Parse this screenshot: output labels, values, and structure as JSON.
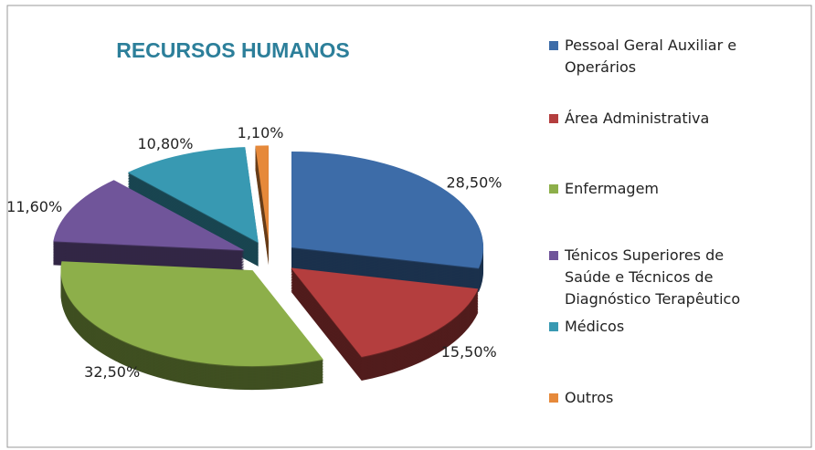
{
  "chart_data": {
    "type": "pie",
    "title": "RECURSOS HUMANOS",
    "categories": [
      "Pessoal Geral Auxiliar e Operários",
      "Área Administrativa",
      "Enfermagem",
      "Ténicos Superiores de Saúde e Técnicos de Diagnóstico Terapêutico",
      "Médicos",
      "Outros"
    ],
    "values": [
      28.5,
      15.5,
      32.5,
      11.6,
      10.8,
      1.1
    ],
    "value_labels": [
      "28,50%",
      "15,50%",
      "32,50%",
      "11,60%",
      "10,80%",
      "1,10%"
    ],
    "colors": [
      "#3d6ca8",
      "#b43e3e",
      "#8daf4a",
      "#70559a",
      "#3899b2",
      "#e6893a"
    ],
    "legend": "right"
  }
}
